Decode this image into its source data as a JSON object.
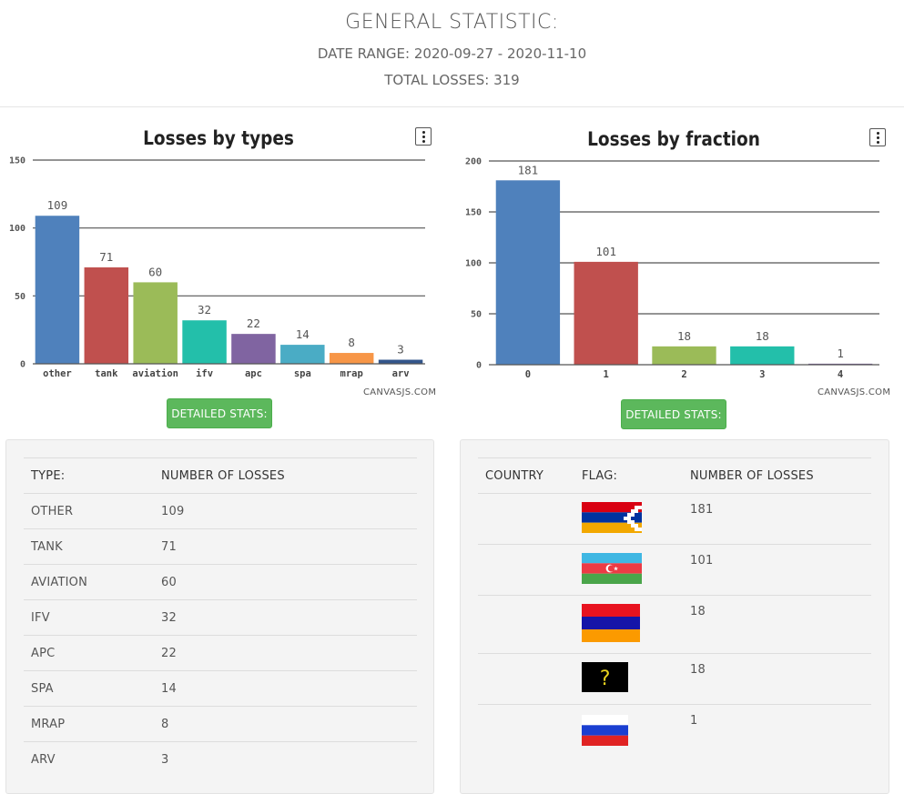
{
  "header": {
    "title": "GENERAL STATISTIC:",
    "date_range": "DATE RANGE: 2020-09-27 - 2020-11-10",
    "total": "TOTAL LOSSES: 319"
  },
  "left": {
    "credit": "CANVASJS.COM",
    "button_label": "DETAILED STATS:",
    "table": {
      "headers": [
        "TYPE:",
        "NUMBER OF LOSSES"
      ],
      "rows": [
        [
          "OTHER",
          "109"
        ],
        [
          "TANK",
          "71"
        ],
        [
          "AVIATION",
          "60"
        ],
        [
          "IFV",
          "32"
        ],
        [
          "APC",
          "22"
        ],
        [
          "SPA",
          "14"
        ],
        [
          "MRAP",
          "8"
        ],
        [
          "ARV",
          "3"
        ]
      ]
    }
  },
  "right": {
    "credit": "CANVASJS.COM",
    "button_label": "DETAILED STATS:",
    "table": {
      "headers": [
        "COUNTRY",
        "FLAG:",
        "NUMBER OF LOSSES"
      ],
      "rows": [
        {
          "country": "",
          "flag": "artsakh-flag",
          "value": "181"
        },
        {
          "country": "",
          "flag": "azerbaijan-flag",
          "value": "101"
        },
        {
          "country": "",
          "flag": "armenia-flag",
          "value": "18"
        },
        {
          "country": "",
          "flag": "unknown-flag",
          "value": "18"
        },
        {
          "country": "",
          "flag": "russia-flag",
          "value": "1"
        }
      ]
    }
  },
  "chart_data": [
    {
      "type": "bar",
      "title": "Losses by types",
      "categories": [
        "other",
        "tank",
        "aviation",
        "ifv",
        "apc",
        "spa",
        "mrap",
        "arv"
      ],
      "values": [
        109,
        71,
        60,
        32,
        22,
        14,
        8,
        3
      ],
      "colors": [
        "#4F81BC",
        "#C0504E",
        "#9BBB58",
        "#23BFAA",
        "#8064A1",
        "#4AACC5",
        "#F79647",
        "#33558B"
      ],
      "ylim": [
        0,
        150
      ],
      "yticks": [
        0,
        50,
        100,
        150
      ],
      "grid": true,
      "data_labels": true
    },
    {
      "type": "bar",
      "title": "Losses by fraction",
      "categories": [
        "0",
        "1",
        "2",
        "3",
        "4"
      ],
      "values": [
        181,
        101,
        18,
        18,
        1
      ],
      "colors": [
        "#4F81BC",
        "#C0504E",
        "#9BBB58",
        "#23BFAA",
        "#8064A1"
      ],
      "ylim": [
        0,
        200
      ],
      "yticks": [
        0,
        50,
        100,
        150,
        200
      ],
      "grid": true,
      "data_labels": true
    }
  ]
}
